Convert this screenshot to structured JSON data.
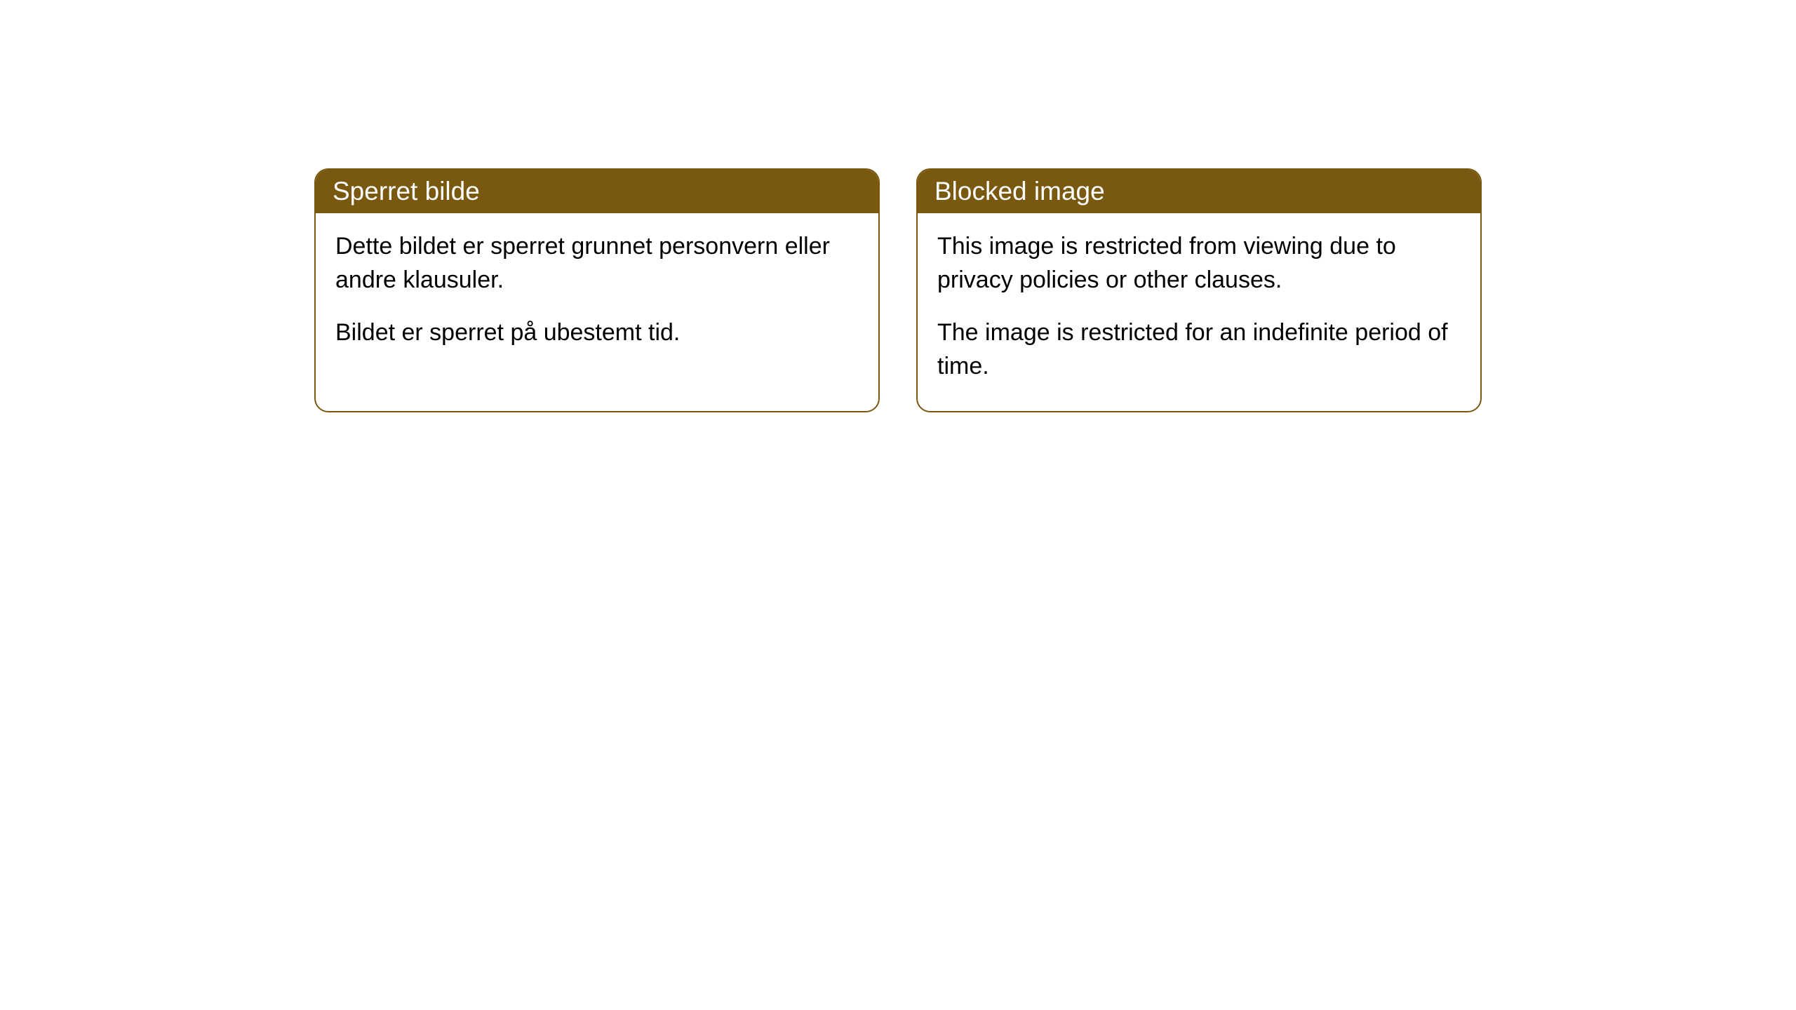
{
  "cards": [
    {
      "title": "Sperret bilde",
      "paragraph1": "Dette bildet er sperret grunnet personvern eller andre klausuler.",
      "paragraph2": "Bildet er sperret på ubestemt tid."
    },
    {
      "title": "Blocked image",
      "paragraph1": "This image is restricted from viewing due to privacy policies or other clauses.",
      "paragraph2": "The image is restricted for an indefinite period of time."
    }
  ],
  "styling": {
    "header_background": "#795810",
    "header_text_color": "#ffffff",
    "border_color": "#795810",
    "body_background": "#ffffff",
    "body_text_color": "#000000",
    "border_radius": 20,
    "header_font_size": 37,
    "body_font_size": 34
  }
}
